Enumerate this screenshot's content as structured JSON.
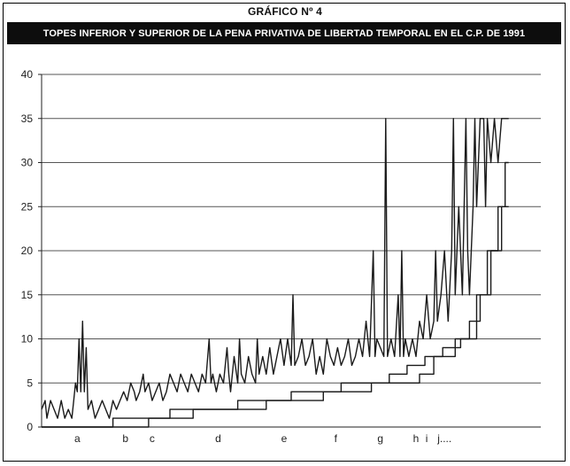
{
  "chart_data": {
    "type": "line",
    "label": "GRÁFICO Nº 4",
    "title": "TOPES INFERIOR Y SUPERIOR DE LA PENA PRIVATIVA DE LIBERTAD TEMPORAL EN EL C.P. DE 1991",
    "xlabel": "",
    "ylabel": "",
    "ylim": [
      0,
      40
    ],
    "yticks": [
      0,
      5,
      10,
      15,
      20,
      25,
      30,
      35,
      40
    ],
    "grid": "horizontal",
    "legend": "none",
    "x_range": [
      0,
      280
    ],
    "x_group_labels": [
      {
        "label": "a",
        "x": 20
      },
      {
        "label": "b",
        "x": 47
      },
      {
        "label": "c",
        "x": 62
      },
      {
        "label": "d",
        "x": 99
      },
      {
        "label": "e",
        "x": 136
      },
      {
        "label": "f",
        "x": 165
      },
      {
        "label": "g",
        "x": 190
      },
      {
        "label": "h",
        "x": 210
      },
      {
        "label": "i",
        "x": 216
      },
      {
        "label": "j....",
        "x": 226
      }
    ],
    "series": [
      {
        "role": "upper",
        "points": [
          [
            0,
            2
          ],
          [
            2,
            3
          ],
          [
            3,
            1
          ],
          [
            5,
            3
          ],
          [
            7,
            2
          ],
          [
            9,
            1
          ],
          [
            11,
            3
          ],
          [
            13,
            1
          ],
          [
            15,
            2
          ],
          [
            17,
            1
          ],
          [
            18,
            3
          ],
          [
            19,
            5
          ],
          [
            20,
            4
          ],
          [
            21,
            10
          ],
          [
            22,
            4
          ],
          [
            23,
            12
          ],
          [
            24,
            4
          ],
          [
            25,
            9
          ],
          [
            26,
            2
          ],
          [
            28,
            3
          ],
          [
            30,
            1
          ],
          [
            32,
            2
          ],
          [
            34,
            3
          ],
          [
            36,
            2
          ],
          [
            38,
            1
          ],
          [
            40,
            3
          ],
          [
            42,
            2
          ],
          [
            44,
            3
          ],
          [
            46,
            4
          ],
          [
            48,
            3
          ],
          [
            50,
            5
          ],
          [
            52,
            4
          ],
          [
            53,
            3
          ],
          [
            55,
            4
          ],
          [
            57,
            6
          ],
          [
            58,
            4
          ],
          [
            60,
            5
          ],
          [
            62,
            3
          ],
          [
            64,
            4
          ],
          [
            66,
            5
          ],
          [
            68,
            3
          ],
          [
            70,
            4
          ],
          [
            72,
            6
          ],
          [
            74,
            5
          ],
          [
            76,
            4
          ],
          [
            78,
            6
          ],
          [
            80,
            5
          ],
          [
            82,
            4
          ],
          [
            84,
            6
          ],
          [
            86,
            5
          ],
          [
            88,
            4
          ],
          [
            90,
            6
          ],
          [
            92,
            5
          ],
          [
            94,
            10
          ],
          [
            95,
            5
          ],
          [
            96,
            6
          ],
          [
            98,
            4
          ],
          [
            100,
            6
          ],
          [
            102,
            5
          ],
          [
            104,
            9
          ],
          [
            105,
            6
          ],
          [
            106,
            4
          ],
          [
            108,
            8
          ],
          [
            110,
            5
          ],
          [
            111,
            10
          ],
          [
            112,
            6
          ],
          [
            114,
            5
          ],
          [
            116,
            8
          ],
          [
            118,
            6
          ],
          [
            120,
            5
          ],
          [
            121,
            10
          ],
          [
            122,
            6
          ],
          [
            124,
            8
          ],
          [
            126,
            6
          ],
          [
            128,
            9
          ],
          [
            130,
            6
          ],
          [
            132,
            8
          ],
          [
            134,
            10
          ],
          [
            136,
            7
          ],
          [
            138,
            10
          ],
          [
            140,
            7
          ],
          [
            141,
            15
          ],
          [
            142,
            7
          ],
          [
            144,
            8
          ],
          [
            146,
            10
          ],
          [
            148,
            7
          ],
          [
            150,
            8
          ],
          [
            152,
            10
          ],
          [
            154,
            6
          ],
          [
            156,
            8
          ],
          [
            158,
            6
          ],
          [
            160,
            10
          ],
          [
            162,
            8
          ],
          [
            164,
            7
          ],
          [
            166,
            9
          ],
          [
            168,
            7
          ],
          [
            170,
            8
          ],
          [
            172,
            10
          ],
          [
            174,
            7
          ],
          [
            176,
            8
          ],
          [
            178,
            10
          ],
          [
            180,
            8
          ],
          [
            182,
            12
          ],
          [
            184,
            8
          ],
          [
            186,
            20
          ],
          [
            187,
            8
          ],
          [
            188,
            10
          ],
          [
            190,
            9
          ],
          [
            192,
            8
          ],
          [
            193,
            35
          ],
          [
            194,
            8
          ],
          [
            196,
            10
          ],
          [
            198,
            8
          ],
          [
            200,
            15
          ],
          [
            201,
            8
          ],
          [
            202,
            20
          ],
          [
            203,
            8
          ],
          [
            204,
            10
          ],
          [
            206,
            8
          ],
          [
            208,
            10
          ],
          [
            210,
            8
          ],
          [
            212,
            12
          ],
          [
            214,
            10
          ],
          [
            216,
            15
          ],
          [
            218,
            10
          ],
          [
            220,
            12
          ],
          [
            221,
            20
          ],
          [
            222,
            12
          ],
          [
            224,
            15
          ],
          [
            226,
            20
          ],
          [
            228,
            12
          ],
          [
            230,
            20
          ],
          [
            231,
            35
          ],
          [
            232,
            15
          ],
          [
            234,
            25
          ],
          [
            236,
            15
          ],
          [
            238,
            35
          ],
          [
            239,
            20
          ],
          [
            240,
            15
          ],
          [
            242,
            25
          ],
          [
            243,
            35
          ],
          [
            244,
            25
          ],
          [
            246,
            35
          ],
          [
            248,
            35
          ],
          [
            249,
            25
          ],
          [
            250,
            35
          ],
          [
            252,
            30
          ],
          [
            254,
            35
          ],
          [
            256,
            30
          ],
          [
            258,
            35
          ],
          [
            260,
            35
          ],
          [
            262,
            35
          ]
        ]
      },
      {
        "role": "lower-1",
        "points": [
          [
            0,
            0
          ],
          [
            40,
            0
          ],
          [
            40,
            1
          ],
          [
            72,
            1
          ],
          [
            72,
            2
          ],
          [
            126,
            2
          ],
          [
            126,
            3
          ],
          [
            158,
            3
          ],
          [
            158,
            4
          ],
          [
            185,
            4
          ],
          [
            185,
            5
          ],
          [
            212,
            5
          ],
          [
            212,
            6
          ],
          [
            220,
            6
          ],
          [
            220,
            8
          ],
          [
            232,
            8
          ],
          [
            232,
            10
          ],
          [
            244,
            10
          ],
          [
            244,
            15
          ],
          [
            250,
            15
          ],
          [
            250,
            20
          ],
          [
            256,
            20
          ],
          [
            256,
            25
          ],
          [
            260,
            25
          ],
          [
            260,
            30
          ],
          [
            262,
            30
          ]
        ]
      },
      {
        "role": "lower-2",
        "points": [
          [
            0,
            0
          ],
          [
            60,
            0
          ],
          [
            60,
            1
          ],
          [
            85,
            1
          ],
          [
            85,
            2
          ],
          [
            110,
            2
          ],
          [
            110,
            3
          ],
          [
            140,
            3
          ],
          [
            140,
            4
          ],
          [
            168,
            4
          ],
          [
            168,
            5
          ],
          [
            195,
            5
          ],
          [
            195,
            6
          ],
          [
            205,
            6
          ],
          [
            205,
            7
          ],
          [
            215,
            7
          ],
          [
            215,
            8
          ],
          [
            225,
            8
          ],
          [
            225,
            9
          ],
          [
            235,
            9
          ],
          [
            235,
            10
          ],
          [
            240,
            10
          ],
          [
            240,
            12
          ],
          [
            246,
            12
          ],
          [
            246,
            15
          ],
          [
            252,
            15
          ],
          [
            252,
            20
          ],
          [
            258,
            20
          ],
          [
            258,
            25
          ],
          [
            262,
            25
          ]
        ]
      }
    ],
    "colors": {
      "line": "#1a1a1a",
      "grid": "#555555",
      "title_bg": "#0d0d0d",
      "title_fg": "#ffffff"
    }
  }
}
